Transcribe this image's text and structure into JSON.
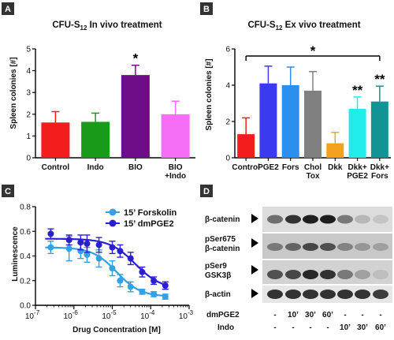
{
  "colors": {
    "panel_label_bg": "#333333",
    "forskolin": "#33a1e3",
    "dmpge2": "#2b1fd6"
  },
  "chart_data": [
    {
      "panel": "A",
      "type": "bar",
      "title_pre": "CFU-S",
      "title_sub": "12",
      "title_post": " In vivo treatment",
      "ylabel": "Spleen colonies [#]",
      "ylim": [
        0,
        5
      ],
      "yticks": [
        "0",
        "1",
        "2",
        "3",
        "4",
        "5"
      ],
      "categories": [
        "Control",
        "Indo",
        "BIO",
        "BIO\n+Indo"
      ],
      "values": [
        1.62,
        1.65,
        3.8,
        2.0
      ],
      "errors": [
        0.5,
        0.4,
        0.45,
        0.6
      ],
      "colors": [
        "#f41d1d",
        "#1a9a1a",
        "#6e0d8a",
        "#f56ef5"
      ],
      "annotations": [
        {
          "category": "BIO",
          "text": "*"
        }
      ]
    },
    {
      "panel": "B",
      "type": "bar",
      "title_pre": "CFU-S",
      "title_sub": "12",
      "title_post": " Ex vivo treatment",
      "ylabel": "Spleen colonies [#]",
      "ylim": [
        0,
        6
      ],
      "yticks": [
        "0",
        "2",
        "4",
        "6"
      ],
      "categories": [
        "Control",
        "PGE2",
        "Fors",
        "Chol\nTox",
        "Dkk",
        "Dkk+\nPGE2",
        "Dkk+\nFors"
      ],
      "values": [
        1.3,
        4.1,
        4.0,
        3.7,
        0.8,
        2.7,
        3.1
      ],
      "errors": [
        0.9,
        0.95,
        1.0,
        1.05,
        0.6,
        0.65,
        0.85
      ],
      "colors": [
        "#f41d1d",
        "#3a3af0",
        "#2b8ff0",
        "#808080",
        "#f3a11d",
        "#21ecec",
        "#139494"
      ],
      "bracket_text": "*",
      "annotations": [
        {
          "category": "Dkk+\nPGE2",
          "text": "**"
        },
        {
          "category": "Dkk+\nFors",
          "text": "**"
        }
      ]
    },
    {
      "panel": "C",
      "type": "line",
      "ylabel": "Luminescence",
      "xlabel": "Drug Concentration [M]",
      "xscale": "log",
      "xlim": [
        1e-07,
        0.001
      ],
      "ylim": [
        0,
        0.8
      ],
      "yticks": [
        "0.0",
        "0.2",
        "0.4",
        "0.6",
        "0.8"
      ],
      "xtick_base": "10",
      "xtick_exps": [
        "-7",
        "-6",
        "-5",
        "-4",
        "-3"
      ],
      "series": [
        {
          "name": "15’ Forskolin",
          "color": "#33a1e3",
          "x": [
            2.5e-07,
            7.5e-07,
            1.5e-06,
            2.2e-06,
            4.5e-06,
            1e-05,
            1.6e-05,
            3e-05,
            6e-05,
            0.00012,
            0.00024
          ],
          "y": [
            0.47,
            0.46,
            0.44,
            0.41,
            0.38,
            0.3,
            0.2,
            0.15,
            0.11,
            0.09,
            0.07
          ],
          "err": [
            0.05,
            0.1,
            0.06,
            0.06,
            0.07,
            0.06,
            0.05,
            0.04,
            0.02,
            0.02,
            0.02
          ],
          "fit": {
            "top": 0.47,
            "bottom": 0.07,
            "ec50": 1.3e-05,
            "hill": 1.4
          }
        },
        {
          "name": "15’ dmPGE2",
          "color": "#2b1fd6",
          "x": [
            2.5e-07,
            7.5e-07,
            1.5e-06,
            2.2e-06,
            4.5e-06,
            1e-05,
            1.6e-05,
            3e-05,
            6e-05,
            0.00012,
            0.00024
          ],
          "y": [
            0.58,
            0.53,
            0.51,
            0.5,
            0.49,
            0.47,
            0.44,
            0.38,
            0.27,
            0.2,
            0.16
          ],
          "err": [
            0.04,
            0.04,
            0.06,
            0.07,
            0.06,
            0.05,
            0.05,
            0.05,
            0.04,
            0.03,
            0.03
          ],
          "fit": {
            "top": 0.54,
            "bottom": 0.13,
            "ec50": 4e-05,
            "hill": 1.3
          }
        }
      ]
    }
  ],
  "panel_d": {
    "panel": "D",
    "rows": [
      "β-catenin",
      "pSer675\nβ-catenin",
      "pSer9\nGSK3β",
      "β-actin"
    ],
    "row_labels": {
      "dmpge2": "dmPGE2",
      "indo": "Indo"
    },
    "dmpge2": [
      "-",
      "10’",
      "30’",
      "60’",
      "-",
      "-",
      "-"
    ],
    "indo": [
      "-",
      "-",
      "-",
      "-",
      "10’",
      "30’",
      "60’"
    ]
  }
}
